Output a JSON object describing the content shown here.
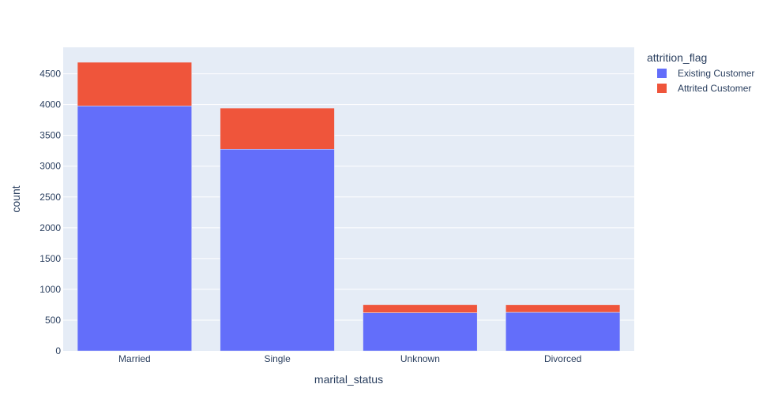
{
  "chart_data": {
    "type": "bar",
    "barmode": "stack",
    "categories": [
      "Married",
      "Single",
      "Unknown",
      "Divorced"
    ],
    "series": [
      {
        "name": "Existing Customer",
        "values": [
          3978,
          3275,
          620,
          627
        ],
        "color": "#636efa"
      },
      {
        "name": "Attrited Customer",
        "values": [
          709,
          668,
          129,
          121
        ],
        "color": "#ef553b"
      }
    ],
    "xlabel": "marital_status",
    "ylabel": "count",
    "ylim": [
      0,
      4930
    ],
    "yticks": [
      0,
      500,
      1000,
      1500,
      2000,
      2500,
      3000,
      3500,
      4000,
      4500
    ],
    "grid": true,
    "legend": {
      "title": "attrition_flag",
      "placement": "top-right"
    },
    "plot_bgcolor": "#e5ecf6"
  }
}
